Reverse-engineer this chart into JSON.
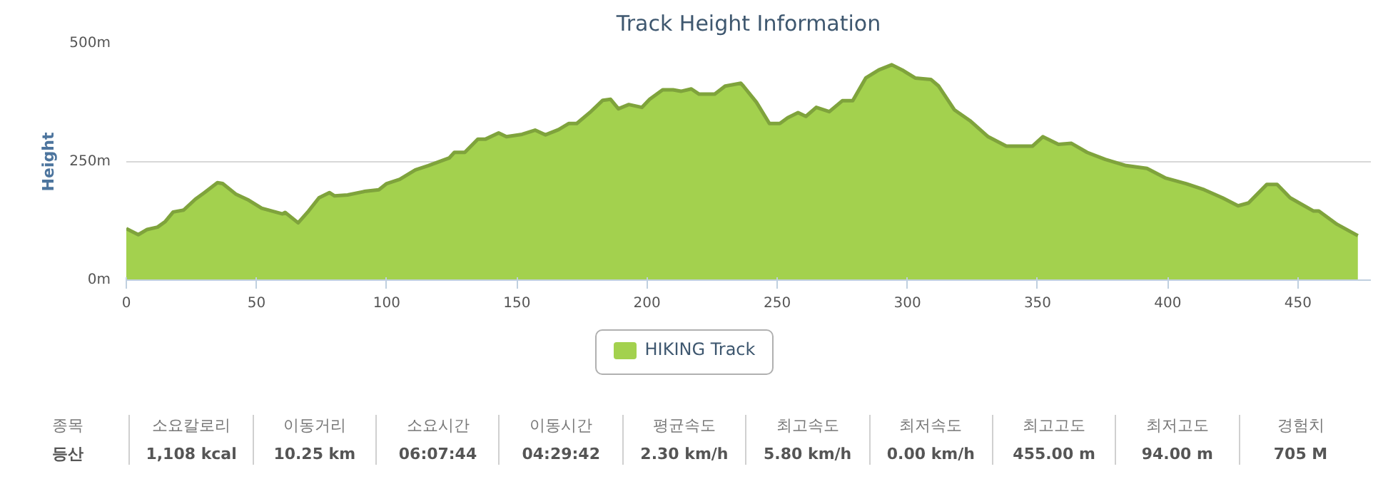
{
  "chart_data": {
    "type": "area",
    "title": "Track Height Information",
    "ylabel": "Height",
    "x": [
      0,
      4.6,
      8,
      12,
      15,
      18,
      22,
      26.5,
      30,
      35,
      37,
      42,
      47,
      52,
      60,
      61,
      66,
      70,
      74,
      78,
      80,
      85,
      92,
      97,
      100,
      105,
      111,
      116,
      124,
      126,
      130,
      135,
      138,
      143,
      146,
      152,
      157,
      161,
      166,
      170,
      173,
      178,
      183,
      186,
      189,
      193,
      198,
      201,
      206,
      210,
      213,
      217,
      220,
      226,
      230,
      236,
      237,
      242,
      247,
      251,
      254,
      258,
      261,
      265,
      270,
      275,
      279,
      284,
      289,
      294,
      298,
      303,
      309,
      312,
      318,
      324,
      331,
      338,
      348,
      352,
      358,
      363,
      369,
      376,
      384,
      392,
      399,
      407,
      414,
      421,
      427,
      431,
      438,
      442,
      447,
      456,
      458,
      465,
      473
    ],
    "series": [
      {
        "name": "HIKING Track",
        "color": "#a3d14e",
        "values": [
          109,
          96,
          107,
          112,
          124,
          144,
          148,
          171,
          185,
          206,
          204,
          182,
          169,
          152,
          140,
          143,
          121,
          146,
          174,
          185,
          178,
          180,
          188,
          191,
          204,
          213,
          233,
          242,
          258,
          270,
          270,
          298,
          298,
          311,
          303,
          308,
          317,
          307,
          318,
          331,
          331,
          354,
          380,
          382,
          362,
          371,
          365,
          382,
          402,
          402,
          399,
          404,
          393,
          393,
          410,
          416,
          410,
          376,
          331,
          331,
          343,
          354,
          346,
          365,
          356,
          379,
          379,
          427,
          444,
          455,
          444,
          427,
          424,
          410,
          360,
          337,
          303,
          283,
          283,
          303,
          287,
          289,
          270,
          255,
          242,
          236,
          216,
          204,
          191,
          174,
          157,
          163,
          202,
          202,
          174,
          146,
          146,
          118,
          94
        ]
      }
    ],
    "xlim": [
      0,
      478
    ],
    "xticks": [
      0,
      50,
      100,
      150,
      200,
      250,
      300,
      350,
      400,
      450
    ],
    "ylim": [
      0,
      500
    ],
    "yticks": [
      {
        "value": 0,
        "label": "0m"
      },
      {
        "value": 250,
        "label": "250m"
      },
      {
        "value": 500,
        "label": "500m"
      }
    ],
    "grid": "y",
    "legend": "bottom",
    "annotations": [
      "종목",
      "등산",
      "소요칼로리",
      "1,108 kcal",
      "이동거리",
      "10.25 km",
      "소요시간",
      "06:07:44",
      "이동시간",
      "04:29:42",
      "평균속도",
      "2.30 km/h",
      "최고속도",
      "5.80 km/h",
      "최저속도",
      "0.00 km/h",
      "최고고도",
      "455.00 m",
      "최저고도",
      "94.00 m",
      "경험치",
      "705 M"
    ]
  }
}
